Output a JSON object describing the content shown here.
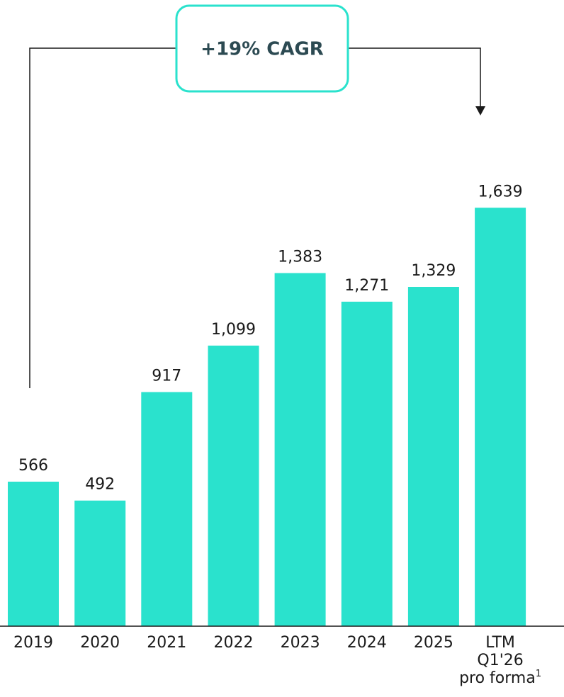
{
  "colors": {
    "bar": "#2ae2cd",
    "annotation_border": "#2ae2cd",
    "annotation_text": "#2c4a52",
    "text": "#1a1a1a",
    "line": "#1a1a1a"
  },
  "annotation": {
    "label": "+19% CAGR"
  },
  "chart_data": {
    "type": "bar",
    "categories": [
      "2019",
      "2020",
      "2021",
      "2022",
      "2023",
      "2024",
      "2025",
      "LTM Q1'26 pro forma1"
    ],
    "category_lines": [
      [
        "2019"
      ],
      [
        "2020"
      ],
      [
        "2021"
      ],
      [
        "2022"
      ],
      [
        "2023"
      ],
      [
        "2024"
      ],
      [
        "2025"
      ],
      [
        "LTM",
        "Q1'26",
        "pro forma"
      ]
    ],
    "last_category_footnote": "1",
    "values": [
      566,
      492,
      917,
      1099,
      1383,
      1271,
      1329,
      1639
    ],
    "value_labels": [
      "566",
      "492",
      "917",
      "1,099",
      "1,383",
      "1,271",
      "1,329",
      "1,639"
    ],
    "title": "",
    "xlabel": "",
    "ylabel": "",
    "ylim": [
      0,
      1870
    ],
    "grid": false,
    "legend": "none"
  }
}
